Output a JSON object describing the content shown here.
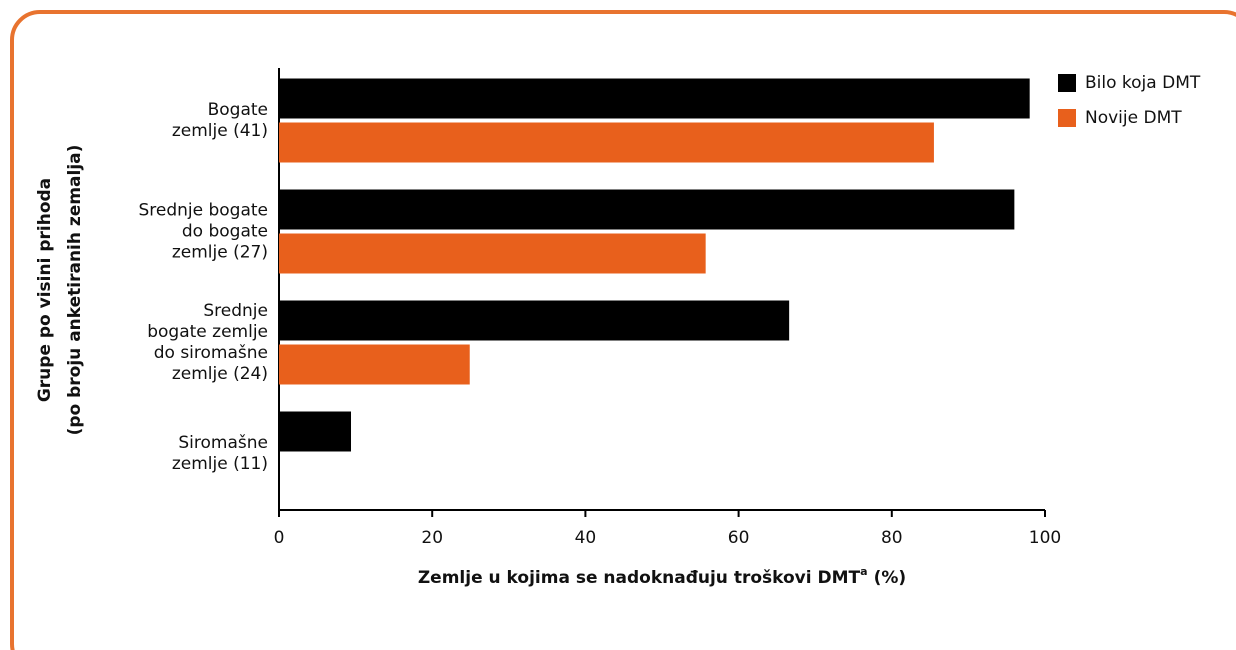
{
  "chart_data": {
    "type": "barh",
    "ylabel": "Grupe po visini prihoda\n(po broju anketiranih zemalja)",
    "xlabel": "Zemlje u kojima se nadoknađuju troškovi DMT",
    "xlabel_sup": "a",
    "xlabel_unit": "(%)",
    "categories": [
      "Bogate\nzemlje (41)",
      "Srednje bogate\ndo bogate\nzemlje (27)",
      "Srednje\nbogate zemlje\ndo siromašne\nzemlje (24)",
      "Siromašne\nzemlje (11)"
    ],
    "series": [
      {
        "name": "Bilo koja DMT",
        "color": "#000000",
        "values": [
          98,
          96,
          66.6,
          9.4
        ]
      },
      {
        "name": "Novije DMT",
        "color": "#e8601c",
        "values": [
          85.5,
          55.7,
          24.9,
          null
        ]
      }
    ],
    "xlim": [
      0,
      100
    ],
    "xticks": [
      0,
      20,
      40,
      60,
      80,
      100
    ],
    "legend": "upper right"
  }
}
